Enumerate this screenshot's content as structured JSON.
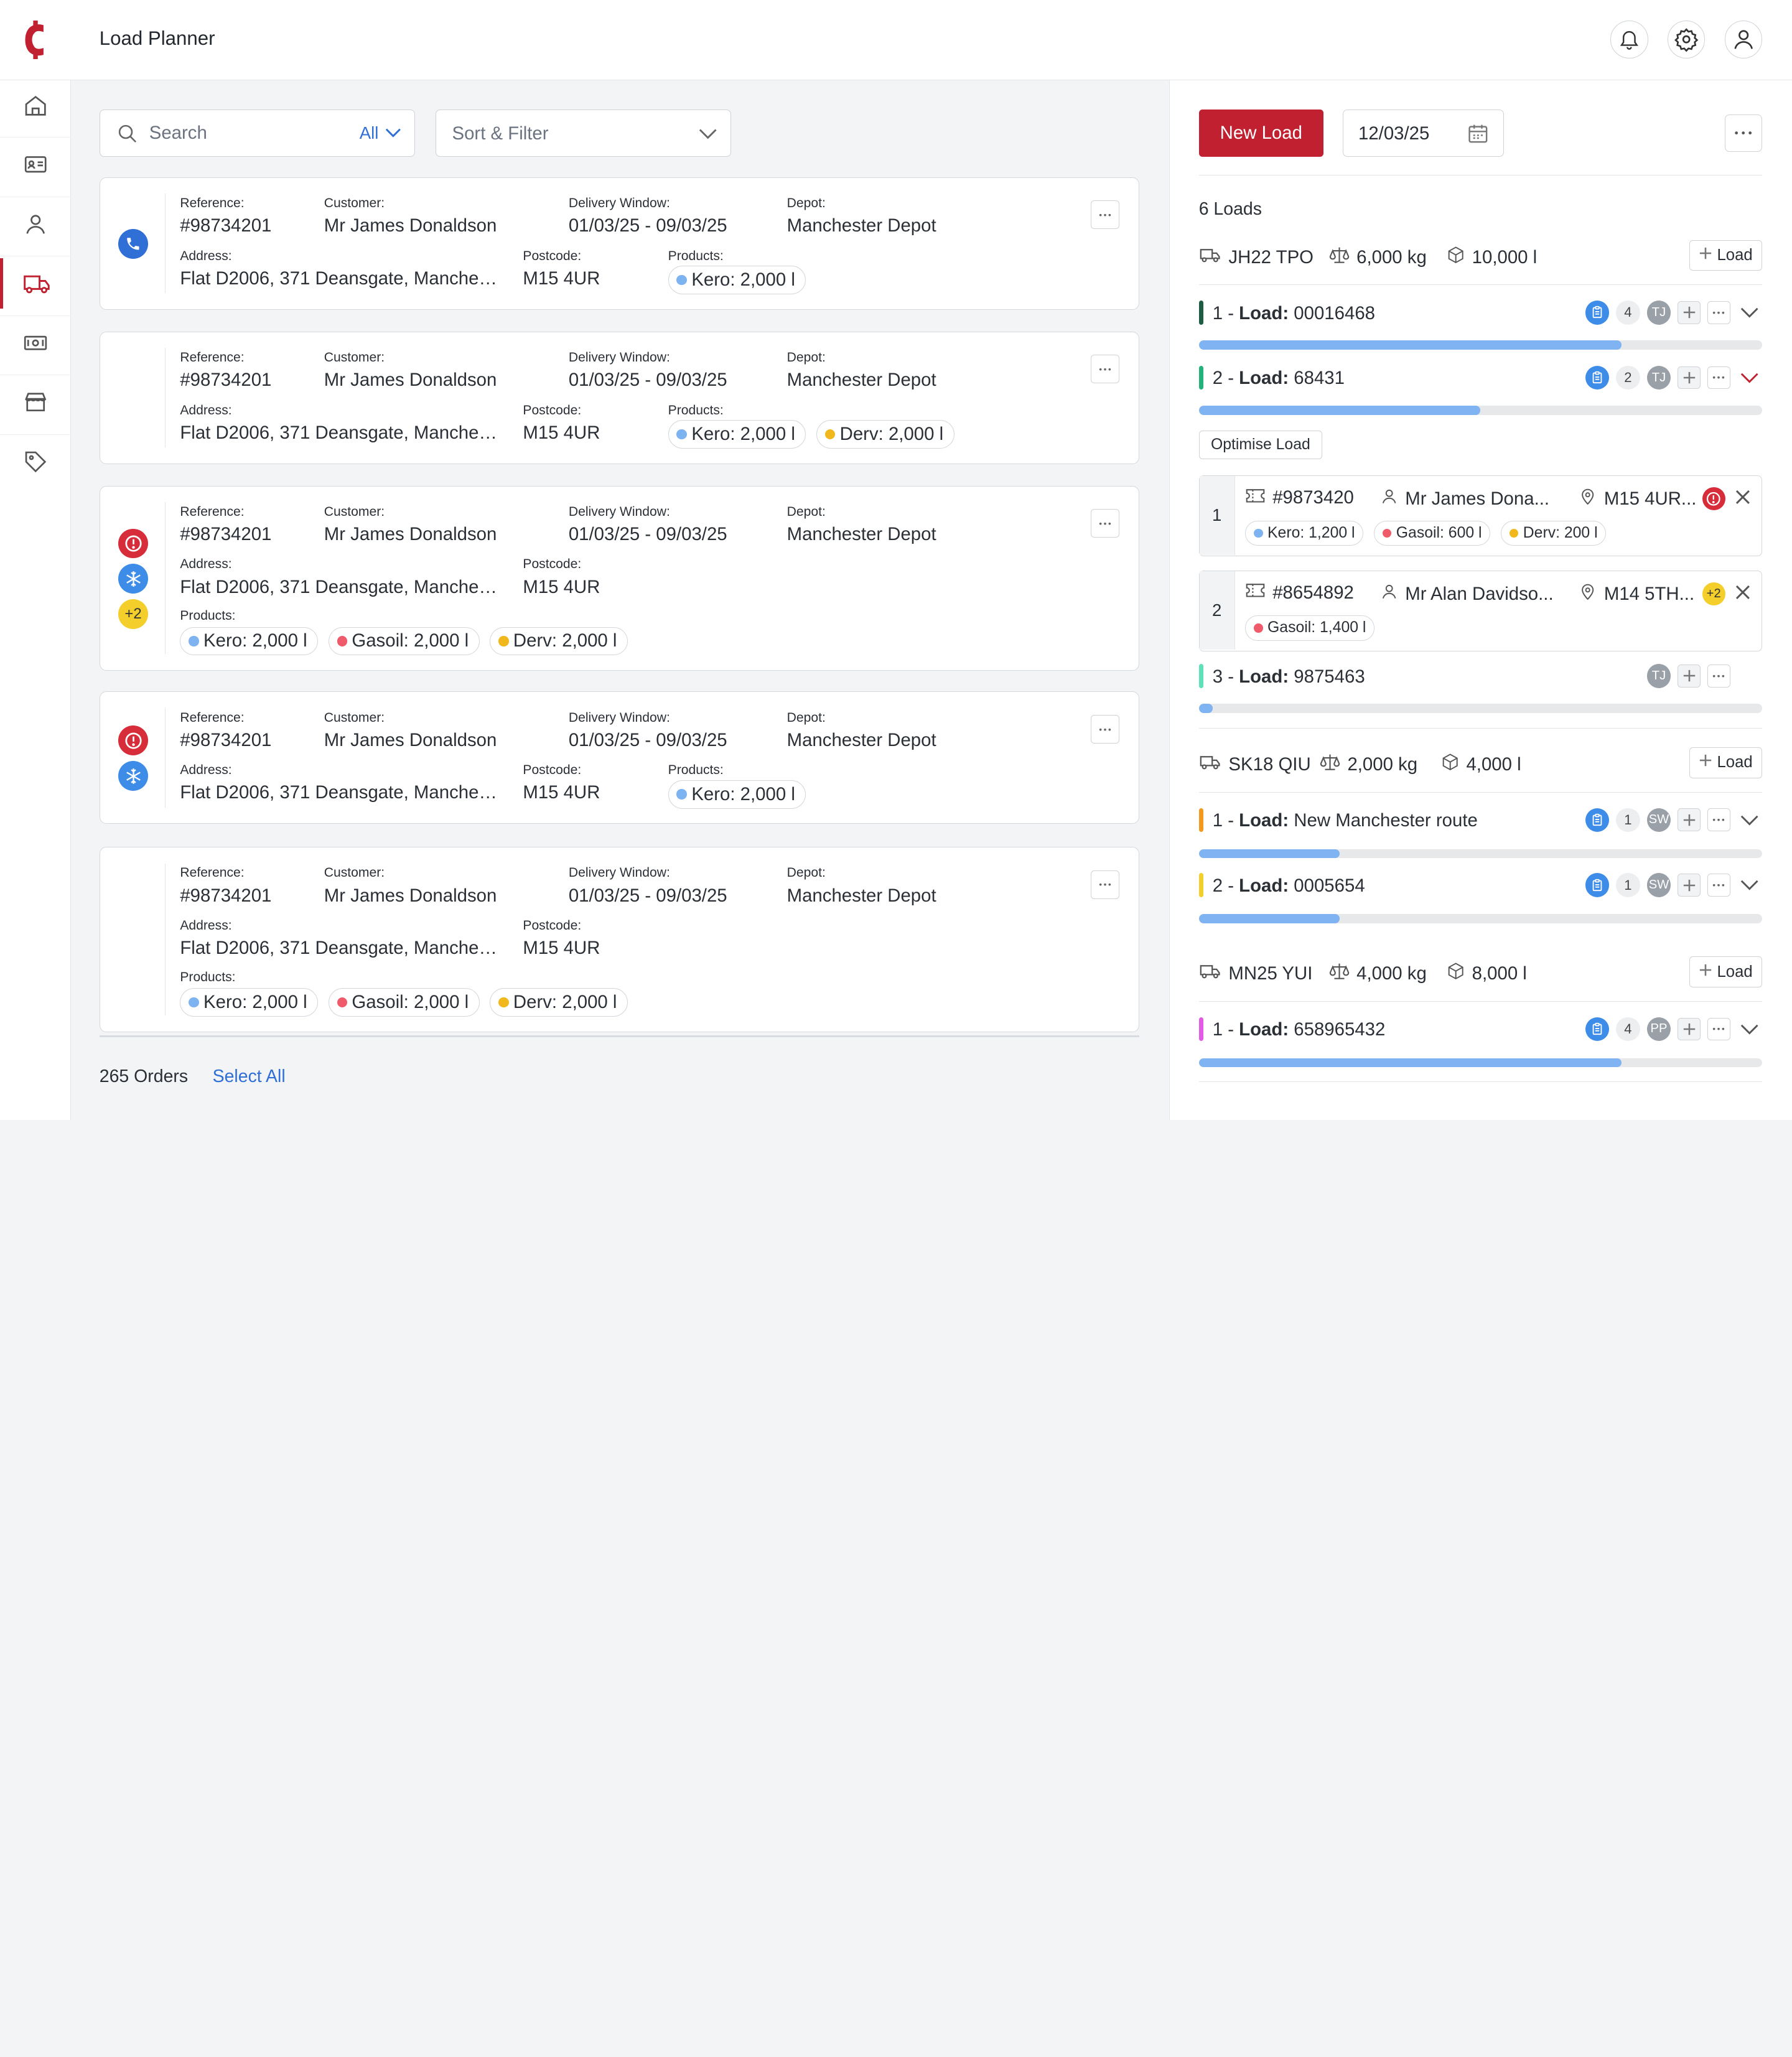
{
  "app": {
    "title": "Load Planner"
  },
  "topbar": {
    "icons": [
      "bell-icon",
      "gear-icon",
      "user-icon"
    ]
  },
  "sidebar": {
    "items": [
      "home",
      "contacts",
      "customers",
      "loads",
      "money",
      "store",
      "tags"
    ],
    "active": "loads"
  },
  "search": {
    "placeholder": "Search",
    "scope": "All"
  },
  "sort_filter": {
    "label": "Sort & Filter"
  },
  "labels": {
    "reference": "Reference:",
    "customer": "Customer:",
    "delivery_window": "Delivery Window:",
    "depot": "Depot:",
    "address": "Address:",
    "postcode": "Postcode:",
    "products": "Products:"
  },
  "orders": [
    {
      "reference": "#98734201",
      "customer": "Mr James Donaldson",
      "delivery_window": "01/03/25 - 09/03/25",
      "depot": "Manchester Depot",
      "address": "Flat D2006, 371 Deansgate, Manchester",
      "postcode": "M15 4UR",
      "icons": [
        "phone-icon"
      ],
      "products": [
        {
          "label": "Kero: 2,000 l",
          "color": "#7db3f0"
        }
      ]
    },
    {
      "reference": "#98734201",
      "customer": "Mr James Donaldson",
      "delivery_window": "01/03/25 - 09/03/25",
      "depot": "Manchester Depot",
      "address": "Flat D2006, 371 Deansgate, Manchester",
      "postcode": "M15 4UR",
      "icons": [],
      "products": [
        {
          "label": "Kero: 2,000 l",
          "color": "#7db3f0"
        },
        {
          "label": "Derv: 2,000 l",
          "color": "#f0b81c"
        }
      ]
    },
    {
      "reference": "#98734201",
      "customer": "Mr James Donaldson",
      "delivery_window": "01/03/25 - 09/03/25",
      "depot": "Manchester Depot",
      "address": "Flat D2006, 371 Deansgate, Manchester",
      "postcode": "M15 4UR",
      "icons": [
        "alert-icon",
        "snowflake-icon",
        "+2"
      ],
      "products": [
        {
          "label": "Kero: 2,000 l",
          "color": "#7db3f0"
        },
        {
          "label": "Gasoil: 2,000 l",
          "color": "#ef5b6a"
        },
        {
          "label": "Derv: 2,000 l",
          "color": "#f0b81c"
        }
      ]
    },
    {
      "reference": "#98734201",
      "customer": "Mr James Donaldson",
      "delivery_window": "01/03/25 - 09/03/25",
      "depot": "Manchester Depot",
      "address": "Flat D2006, 371 Deansgate, Manchester",
      "postcode": "M15 4UR",
      "icons": [
        "alert-icon",
        "snowflake-icon"
      ],
      "products": [
        {
          "label": "Kero: 2,000 l",
          "color": "#7db3f0"
        }
      ]
    },
    {
      "reference": "#98734201",
      "customer": "Mr James Donaldson",
      "delivery_window": "01/03/25 - 09/03/25",
      "depot": "Manchester Depot",
      "address": "Flat D2006, 371 Deansgate, Manchester",
      "postcode": "M15 4UR",
      "icons": [],
      "products": [
        {
          "label": "Kero: 2,000 l",
          "color": "#7db3f0"
        },
        {
          "label": "Gasoil: 2,000 l",
          "color": "#ef5b6a"
        },
        {
          "label": "Derv: 2,000 l",
          "color": "#f0b81c"
        }
      ]
    }
  ],
  "footer": {
    "orders_count": "265 Orders",
    "select_all": "Select All"
  },
  "panel": {
    "new_load": "New Load",
    "date": "12/03/25",
    "loads_count": "6 Loads",
    "add_load_label": "Load",
    "optimise_label": "Optimise Load",
    "load_prefix": "Load:"
  },
  "vehicles": [
    {
      "reg": "JH22 TPO",
      "weight": "6,000 kg",
      "volume": "10,000 l"
    },
    {
      "reg": "SK18 QIU",
      "weight": "2,000 kg",
      "volume": "4,000 l"
    },
    {
      "reg": "MN25 YUI",
      "weight": "4,000 kg",
      "volume": "8,000 l"
    }
  ],
  "loads": [
    {
      "index": "1 -",
      "name": "00016468",
      "color": "#1f5c44",
      "count": "4",
      "assignee": "TJ",
      "progress": 0.75,
      "expanded": false
    },
    {
      "index": "2 -",
      "name": "68431",
      "color": "#22b27a",
      "count": "2",
      "assignee": "TJ",
      "progress": 0.5,
      "expanded": true
    },
    {
      "index": "3 -",
      "name": "9875463",
      "color": "#5fe0b8",
      "count": "",
      "assignee": "TJ",
      "progress": 0.025,
      "expanded": false
    },
    {
      "index": "1 -",
      "name": "New Manchester route",
      "color": "#f29a1f",
      "count": "1",
      "assignee": "SW",
      "progress": 0.25,
      "expanded": false
    },
    {
      "index": "2 -",
      "name": "0005654",
      "color": "#f4cf2b",
      "count": "1",
      "assignee": "SW",
      "progress": 0.25,
      "expanded": false
    },
    {
      "index": "1 -",
      "name": "658965432",
      "color": "#e25be3",
      "count": "4",
      "assignee": "PP",
      "progress": 0.75,
      "expanded": false
    }
  ],
  "stops": [
    {
      "num": "1",
      "order": "#9873420",
      "customer": "Mr James Dona...",
      "postcode": "M15 4UR...",
      "badge": "alert",
      "badge_text": "",
      "products": [
        {
          "label": "Kero: 1,200 l",
          "color": "#7db3f0"
        },
        {
          "label": "Gasoil: 600 l",
          "color": "#ef5b6a"
        },
        {
          "label": "Derv: 200 l",
          "color": "#f0b81c"
        }
      ]
    },
    {
      "num": "2",
      "order": "#8654892",
      "customer": "Mr Alan Davidso...",
      "postcode": "M14 5TH...",
      "badge": "count",
      "badge_text": "+2",
      "products": [
        {
          "label": "Gasoil: 1,400 l",
          "color": "#ef5b6a"
        }
      ]
    }
  ],
  "colors": {
    "brand": "#c0202f",
    "link": "#2f6fd6",
    "progress": "#7fb3f2"
  }
}
